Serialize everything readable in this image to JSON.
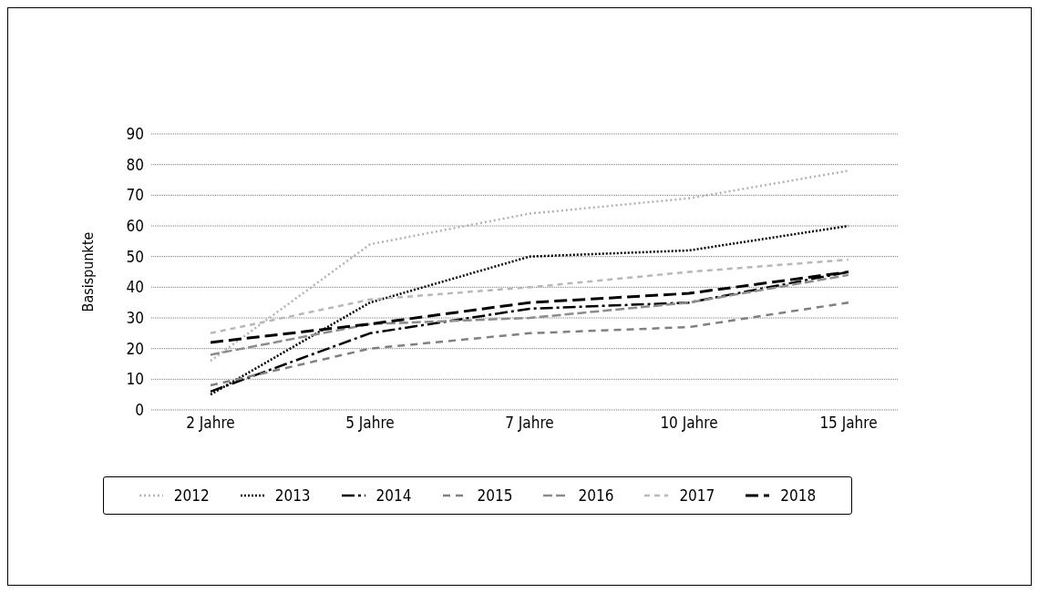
{
  "chart_data": {
    "type": "line",
    "ylabel": "Basispunkte",
    "categories": [
      "2 Jahre",
      "5 Jahre",
      "7 Jahre",
      "10 Jahre",
      "15 Jahre"
    ],
    "series": [
      {
        "name": "2012",
        "color": "#b3b3b3",
        "line_style": "dotted",
        "values": [
          16,
          54,
          64,
          69,
          78
        ]
      },
      {
        "name": "2013",
        "color": "#000000",
        "line_style": "dotted",
        "values": [
          5,
          35,
          50,
          52,
          60
        ]
      },
      {
        "name": "2014",
        "color": "#000000",
        "line_style": "dashed",
        "values": [
          6,
          25,
          33,
          35,
          45
        ]
      },
      {
        "name": "2015",
        "color": "#808080",
        "line_style": "dashed",
        "values": [
          8,
          20,
          25,
          27,
          35
        ]
      },
      {
        "name": "2016",
        "color": "#8c8c8c",
        "line_style": "dashed",
        "values": [
          18,
          28,
          30,
          35,
          44
        ]
      },
      {
        "name": "2017",
        "color": "#b8b8b8",
        "line_style": "dashed",
        "values": [
          25,
          36,
          40,
          45,
          49
        ]
      },
      {
        "name": "2018",
        "color": "#000000",
        "line_style": "dashed",
        "values": [
          22,
          28,
          35,
          38,
          45
        ]
      }
    ],
    "ylim": [
      0,
      90
    ],
    "yticks": [
      0,
      10,
      20,
      30,
      40,
      50,
      60,
      70,
      80,
      90
    ],
    "grid": "y",
    "legend": "bottom",
    "marker": "none"
  }
}
